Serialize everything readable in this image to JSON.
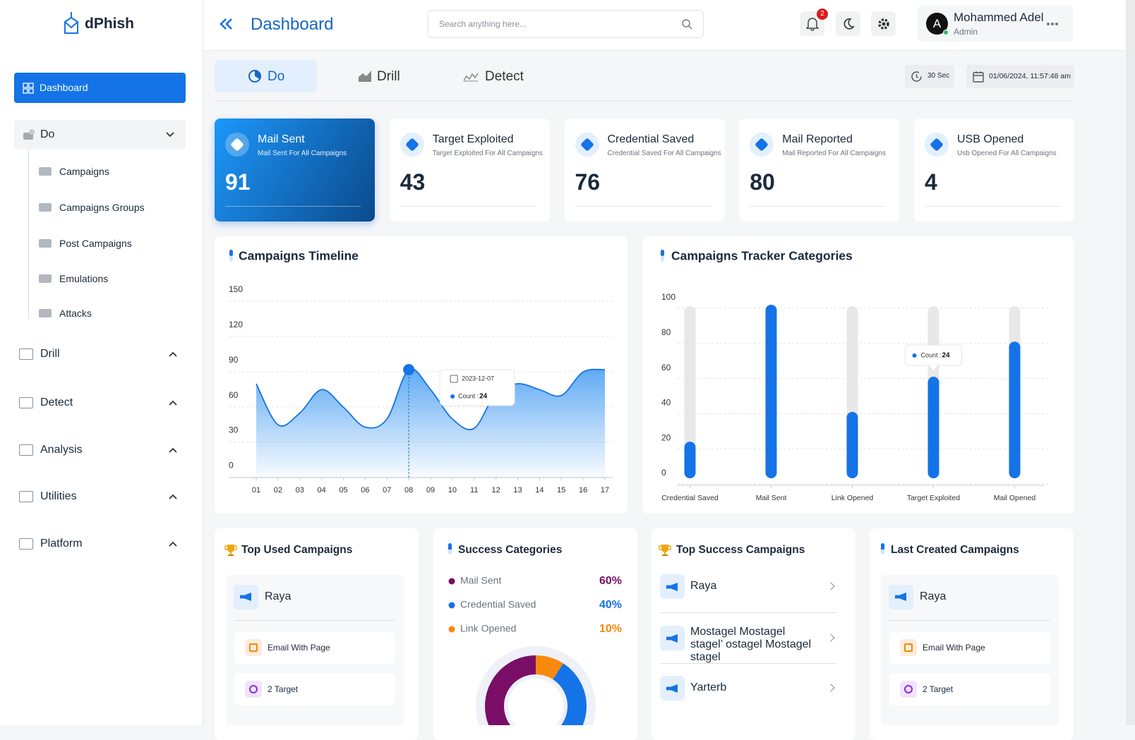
{
  "sidebar": {
    "brand": "dPhish",
    "active": "Dashboard",
    "sections": [
      {
        "label": "Do",
        "items": [
          "Campaigns",
          "Campaigns Groups",
          "Post Campaigns",
          "Emulations",
          "Attacks"
        ]
      },
      {
        "label": "Drill"
      },
      {
        "label": "Detect"
      },
      {
        "label": "Analysis"
      },
      {
        "label": "Utilities"
      },
      {
        "label": "Platform"
      }
    ]
  },
  "header": {
    "title": "Dashboard",
    "search_placeholder": "Search anything here...",
    "notifications": 2,
    "user": {
      "initial": "A",
      "name": "Mohammed Adel",
      "role": "Admin"
    }
  },
  "tabs": [
    "Do",
    "Drill",
    "Detect"
  ],
  "refresh": "30 Sec",
  "datetime": "01/06/2024, 11:57:48 am",
  "stats": [
    {
      "title": "Mail Sent",
      "subtitle": "Mail Sent For All Campaigns",
      "value": 91
    },
    {
      "title": "Target Exploited",
      "subtitle": "Target Exploited For All Campaigns",
      "value": 43
    },
    {
      "title": "Credential Saved",
      "subtitle": "Credential Saved For All Campaigns",
      "value": 76
    },
    {
      "title": "Mail Reported",
      "subtitle": "Mail Reported For All Campaigns",
      "value": 80
    },
    {
      "title": "USB Opened",
      "subtitle": "Usb Opened For All Campaigns",
      "value": 4
    }
  ],
  "chart_data": [
    {
      "type": "line",
      "title": "Campaigns Timeline",
      "categories": [
        "01",
        "02",
        "03",
        "04",
        "05",
        "06",
        "07",
        "08",
        "09",
        "10",
        "11",
        "12",
        "13",
        "14",
        "15",
        "16",
        "17"
      ],
      "values": [
        70,
        35,
        45,
        65,
        50,
        33,
        40,
        82,
        65,
        40,
        32,
        62,
        70,
        65,
        60,
        80,
        82
      ],
      "color": "#1473e6",
      "ylim": [
        -10,
        150
      ],
      "yticks": [
        0,
        30,
        60,
        90,
        120,
        150
      ],
      "grid": true,
      "tooltip": {
        "date": "2023-12-07",
        "label": "Count :",
        "value": 24
      }
    },
    {
      "type": "bar",
      "title": "Campaigns Tracker Categories",
      "categories": [
        "Credential Saved",
        "Mail Sent",
        "Link Opened",
        "Target Exploited",
        "Mail Opened"
      ],
      "values": [
        18,
        96,
        35,
        55,
        75
      ],
      "color": "#1473e6",
      "track_color": "#e8e8e8",
      "ylim": [
        0,
        100
      ],
      "yticks": [
        0,
        20,
        40,
        60,
        80,
        100
      ],
      "grid": true,
      "tooltip": {
        "label": "Count :",
        "value": 24
      }
    },
    {
      "type": "pie",
      "title": "Success Categories",
      "categories": [
        "Mail Sent",
        "Credential Saved",
        "Link Opened"
      ],
      "values": [
        60,
        40,
        10
      ],
      "value_labels": [
        "60%",
        "40%",
        "10%"
      ],
      "colors": [
        "#7a0e66",
        "#1473e6",
        "#f7890c"
      ]
    }
  ],
  "cards": {
    "top_used": {
      "title": "Top Used Campaigns",
      "name": "Raya",
      "details": [
        "Email With Page",
        "2 Target"
      ]
    },
    "top_success": {
      "title": "Top Success Campaigns",
      "items": [
        "Raya",
        "Mostagel Mostagel stagel’ ostagel Mostagel stagel",
        "Yarterb"
      ]
    },
    "last_created": {
      "title": "Last Created Campaigns",
      "name": "Raya",
      "details": [
        "Email With Page",
        "2 Target"
      ]
    }
  }
}
